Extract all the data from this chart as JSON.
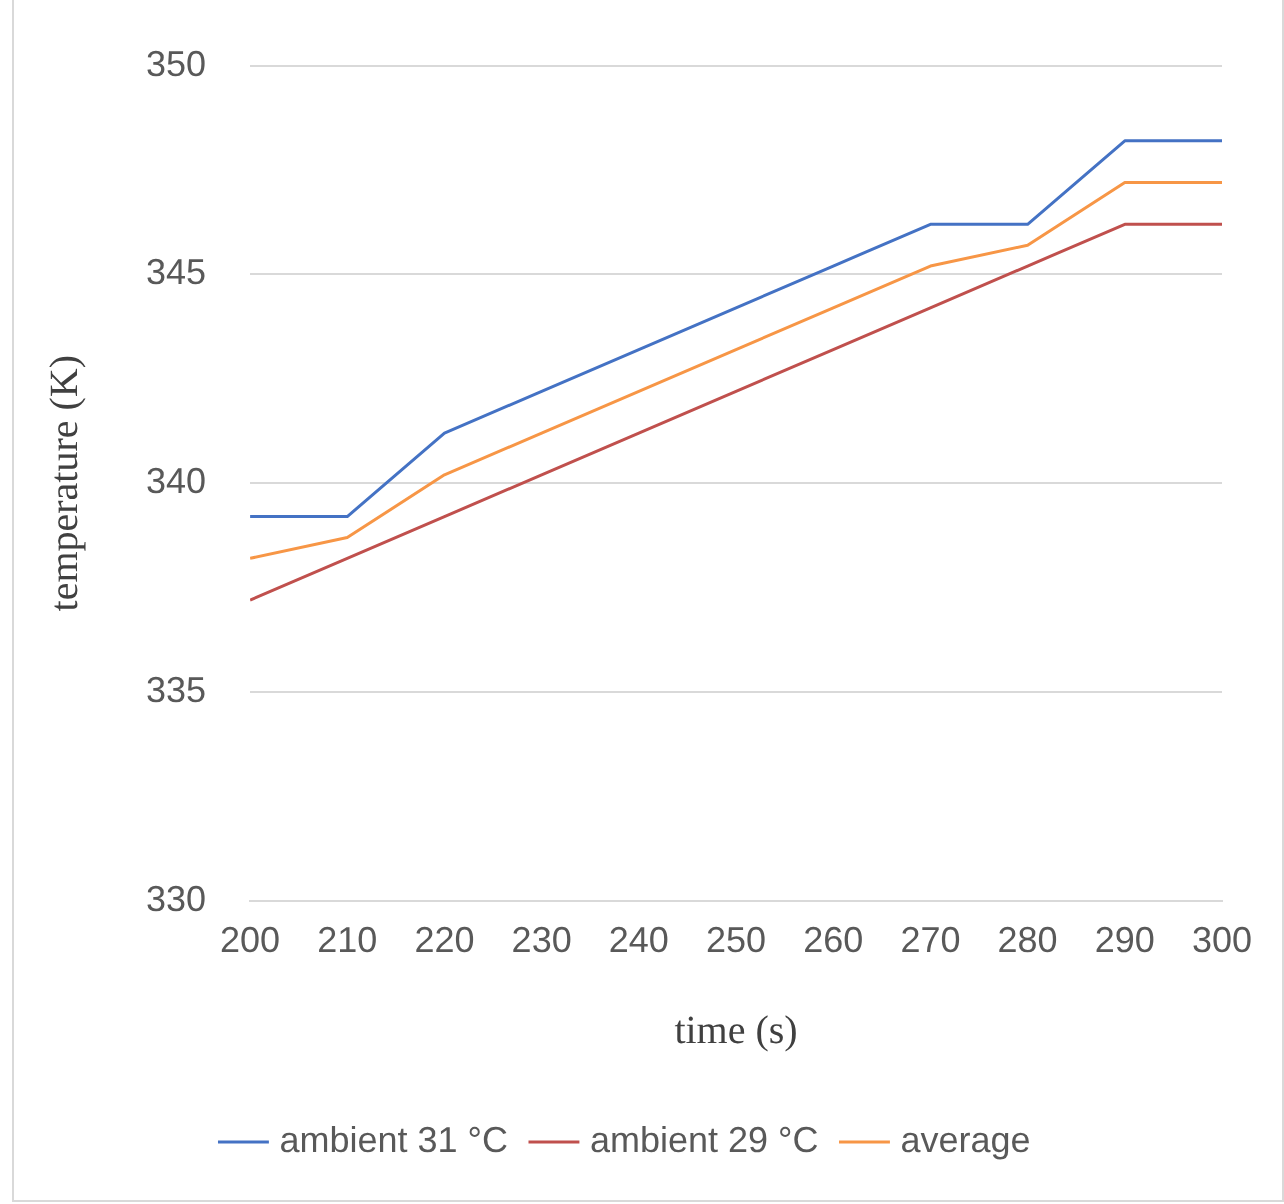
{
  "chart_data": {
    "type": "line",
    "xlabel": "time (s)",
    "ylabel": "temperature (K)",
    "x": [
      200,
      210,
      220,
      230,
      240,
      250,
      260,
      270,
      280,
      290,
      300
    ],
    "series": [
      {
        "name": "ambient 31 °C",
        "color": "#4472c4",
        "values": [
          339.2,
          339.2,
          341.2,
          342.2,
          343.2,
          344.2,
          345.2,
          346.2,
          346.2,
          348.2,
          348.2
        ]
      },
      {
        "name": "ambient 29 °C",
        "color": "#c0504d",
        "values": [
          337.2,
          338.2,
          339.2,
          340.2,
          341.2,
          342.2,
          343.2,
          344.2,
          345.2,
          346.2,
          346.2
        ]
      },
      {
        "name": "average",
        "color": "#f79646",
        "values": [
          338.2,
          338.7,
          340.2,
          341.2,
          342.2,
          343.2,
          344.2,
          345.2,
          345.7,
          347.2,
          347.2
        ]
      }
    ],
    "xlim": [
      200,
      300
    ],
    "xticks": [
      200,
      210,
      220,
      230,
      240,
      250,
      260,
      270,
      280,
      290,
      300
    ],
    "ylim": [
      330,
      350
    ],
    "yticks": [
      330,
      335,
      340,
      345,
      350
    ],
    "grid": "y",
    "legend": "bottom",
    "marker": "none",
    "line_style": "solid"
  }
}
